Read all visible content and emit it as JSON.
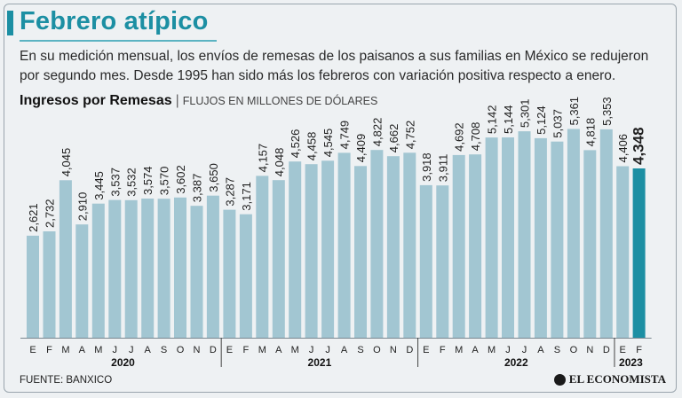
{
  "header": {
    "title": "Febrero atípico",
    "subtitle": "En su medición mensual, los envíos de remesas de los paisanos a sus familias en México se redujeron por segundo mes. Desde 1995 han sido más los febreros con variación positiva respecto a enero."
  },
  "chart_header": {
    "title": "Ingresos por Remesas",
    "separator": "|",
    "unit": "FLUJOS EN MILLONES DE DÓLARES"
  },
  "footer": {
    "source": "FUENTE: BANXICO",
    "brand": "EL ECONOMISTA"
  },
  "colors": {
    "bar": "#a2c6d2",
    "highlight": "#1c8fa3",
    "title": "#1c8fa3"
  },
  "chart_data": {
    "type": "bar",
    "title": "Ingresos por Remesas",
    "ylabel": "Millones de dólares",
    "ylim": [
      0,
      5600
    ],
    "years": [
      {
        "label": "2020",
        "months": [
          "E",
          "F",
          "M",
          "A",
          "M",
          "J",
          "J",
          "A",
          "S",
          "O",
          "N",
          "D"
        ],
        "values": [
          2621,
          2732,
          4045,
          2910,
          3445,
          3537,
          3532,
          3574,
          3570,
          3602,
          3387,
          3650
        ],
        "labels": [
          "2,621",
          "2,732",
          "4,045",
          "2,910",
          "3,445",
          "3,537",
          "3,532",
          "3,574",
          "3,570",
          "3,602",
          "3,387",
          "3,650"
        ]
      },
      {
        "label": "2021",
        "months": [
          "E",
          "F",
          "M",
          "A",
          "M",
          "J",
          "J",
          "A",
          "S",
          "O",
          "N",
          "D"
        ],
        "values": [
          3287,
          3171,
          4157,
          4048,
          4526,
          4458,
          4545,
          4749,
          4409,
          4822,
          4662,
          4752
        ],
        "labels": [
          "3,287",
          "3,171",
          "4,157",
          "4,048",
          "4,526",
          "4,458",
          "4,545",
          "4,749",
          "4,409",
          "4,822",
          "4,662",
          "4,752"
        ]
      },
      {
        "label": "2022",
        "months": [
          "E",
          "F",
          "M",
          "A",
          "M",
          "J",
          "J",
          "A",
          "S",
          "O",
          "N",
          "D"
        ],
        "values": [
          3918,
          3911,
          4692,
          4708,
          5142,
          5144,
          5301,
          5124,
          5037,
          5361,
          4818,
          5353
        ],
        "labels": [
          "3,918",
          "3,911",
          "4,692",
          "4,708",
          "5,142",
          "5,144",
          "5,301",
          "5,124",
          "5,037",
          "5,361",
          "4,818",
          "5,353"
        ]
      },
      {
        "label": "2023",
        "months": [
          "E",
          "F"
        ],
        "values": [
          4406,
          4348
        ],
        "labels": [
          "4,406",
          "4,348"
        ]
      }
    ],
    "highlight": {
      "year": "2023",
      "month_index": 1
    }
  }
}
